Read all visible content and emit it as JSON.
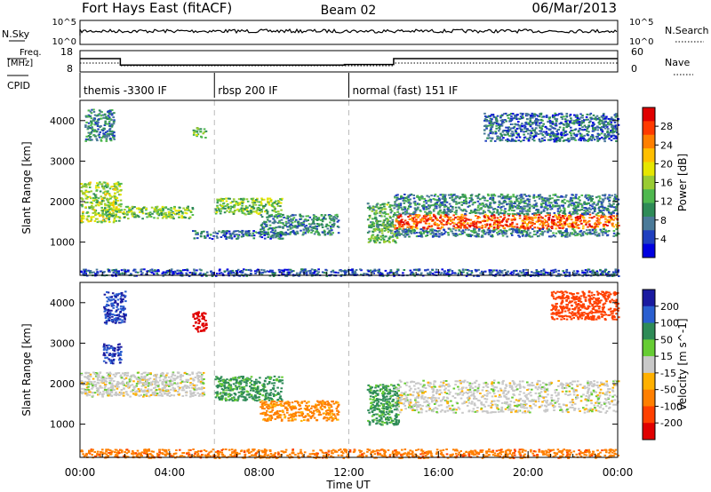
{
  "header": {
    "title": "Fort Hays East (fitACF)",
    "beam": "Beam 02",
    "date": "06/Mar/2013"
  },
  "noise_panel": {
    "left_label": "N.Sky",
    "left_ticks": [
      "10^5",
      "10^0"
    ],
    "right_label": "N.Search",
    "right_ticks": [
      "10^5",
      "10^0"
    ]
  },
  "freq_panel": {
    "left_label_line1": "Freq.",
    "left_label_line2": "[MHz]",
    "left_ticks": [
      "18",
      "8"
    ],
    "right_label": "Nave",
    "right_ticks": [
      "60",
      "0"
    ]
  },
  "cpid_panel": {
    "label": "CPID",
    "modes": [
      {
        "label": "themis -3300 IF",
        "start_h": 0
      },
      {
        "label": "rbsp 200 IF",
        "start_h": 6
      },
      {
        "label": "normal (fast) 151 IF",
        "start_h": 12
      }
    ]
  },
  "axes": {
    "xlabel": "Time UT",
    "x_ticks": [
      "00:00",
      "04:00",
      "08:00",
      "12:00",
      "16:00",
      "20:00",
      "00:00"
    ],
    "ylabel": "Slant Range [km]",
    "y_ticks": [
      "1000",
      "2000",
      "3000",
      "4000"
    ]
  },
  "colorbars": {
    "power": {
      "label": "Power [dB]",
      "ticks": [
        "28",
        "24",
        "20",
        "16",
        "12",
        "8",
        "4"
      ],
      "colors": [
        "#e00000",
        "#ff3a00",
        "#ff7f00",
        "#ffbf00",
        "#e6e600",
        "#99cc33",
        "#4fb84f",
        "#2e8b57",
        "#4a7a99",
        "#1f3fbf",
        "#0000e0"
      ]
    },
    "velocity": {
      "label": "Velocity [m s^-1]",
      "ticks": [
        "200",
        "100",
        "50",
        "15",
        "-15",
        "-50",
        "-100",
        "-200"
      ],
      "colors": [
        "#1a1aa0",
        "#2a5fd0",
        "#2e8b57",
        "#66cc33",
        "#c8c8c8",
        "#ffb000",
        "#ff7f00",
        "#ff4000",
        "#e00000"
      ]
    }
  },
  "chart_data": [
    {
      "type": "heatmap",
      "title": "",
      "xlabel": "",
      "ylabel": "Slant Range [km]",
      "xlim": [
        0,
        24
      ],
      "ylim": [
        180,
        4500
      ],
      "colorbar_label": "Power [dB]",
      "zlim": [
        0,
        32
      ],
      "echo_regions": [
        {
          "t": [
            0.0,
            1.8
          ],
          "range_km": [
            1500,
            2500
          ],
          "power_db": 16
        },
        {
          "t": [
            0.2,
            1.5
          ],
          "range_km": [
            3500,
            4300
          ],
          "power_db": 8
        },
        {
          "t": [
            1.8,
            5.0
          ],
          "range_km": [
            1600,
            1900
          ],
          "power_db": 14
        },
        {
          "t": [
            5.0,
            5.6
          ],
          "range_km": [
            3600,
            3850
          ],
          "power_db": 14
        },
        {
          "t": [
            6.0,
            9.0
          ],
          "range_km": [
            1700,
            2100
          ],
          "power_db": 14
        },
        {
          "t": [
            8.0,
            11.5
          ],
          "range_km": [
            1200,
            1700
          ],
          "power_db": 8
        },
        {
          "t": [
            5.0,
            9.0
          ],
          "range_km": [
            1100,
            1300
          ],
          "power_db": 6
        },
        {
          "t": [
            12.8,
            14.2
          ],
          "range_km": [
            1000,
            2000
          ],
          "power_db": 12
        },
        {
          "t": [
            14.0,
            24.0
          ],
          "range_km": [
            1350,
            1700
          ],
          "power_db": 28
        },
        {
          "t": [
            14.0,
            24.0
          ],
          "range_km": [
            1700,
            2200
          ],
          "power_db": 8
        },
        {
          "t": [
            14.0,
            24.0
          ],
          "range_km": [
            1150,
            1350
          ],
          "power_db": 8
        },
        {
          "t": [
            18.0,
            24.0
          ],
          "range_km": [
            3500,
            4200
          ],
          "power_db": 6
        },
        {
          "t": [
            0.0,
            24.0
          ],
          "range_km": [
            180,
            350
          ],
          "power_db": 4
        }
      ]
    },
    {
      "type": "heatmap",
      "title": "",
      "xlabel": "Time UT",
      "ylabel": "Slant Range [km]",
      "xlim": [
        0,
        24
      ],
      "ylim": [
        180,
        4500
      ],
      "colorbar_label": "Velocity [m s^-1]",
      "zlim": [
        -250,
        250
      ],
      "echo_regions": [
        {
          "t": [
            0.0,
            5.5
          ],
          "range_km": [
            1700,
            2300
          ],
          "velocity": 0
        },
        {
          "t": [
            1.0,
            1.8
          ],
          "range_km": [
            2500,
            3000
          ],
          "velocity": 150
        },
        {
          "t": [
            1.0,
            2.0
          ],
          "range_km": [
            3500,
            4300
          ],
          "velocity": 150
        },
        {
          "t": [
            5.0,
            5.6
          ],
          "range_km": [
            3300,
            3800
          ],
          "velocity": -200
        },
        {
          "t": [
            6.0,
            9.0
          ],
          "range_km": [
            1600,
            2200
          ],
          "velocity": 40
        },
        {
          "t": [
            8.0,
            11.5
          ],
          "range_km": [
            1100,
            1600
          ],
          "velocity": -40
        },
        {
          "t": [
            12.8,
            14.2
          ],
          "range_km": [
            1000,
            2000
          ],
          "velocity": 40
        },
        {
          "t": [
            14.0,
            24.0
          ],
          "range_km": [
            1300,
            2100
          ],
          "velocity": 0
        },
        {
          "t": [
            0.0,
            24.0
          ],
          "range_km": [
            180,
            400
          ],
          "velocity": -60
        },
        {
          "t": [
            21.0,
            24.0
          ],
          "range_km": [
            3600,
            4300
          ],
          "velocity": -100
        }
      ]
    },
    {
      "type": "line",
      "title": "",
      "xlabel": "",
      "ylabel": "Freq. [MHz]",
      "ylim": [
        8,
        18
      ],
      "series": [
        {
          "name": "",
          "x": [
            0,
            1.8,
            1.8,
            11.8,
            11.8,
            14,
            14,
            24
          ],
          "values": [
            14.8,
            14.8,
            11.5,
            11.5,
            11.8,
            11.8,
            14.8,
            14.8
          ]
        }
      ]
    }
  ]
}
